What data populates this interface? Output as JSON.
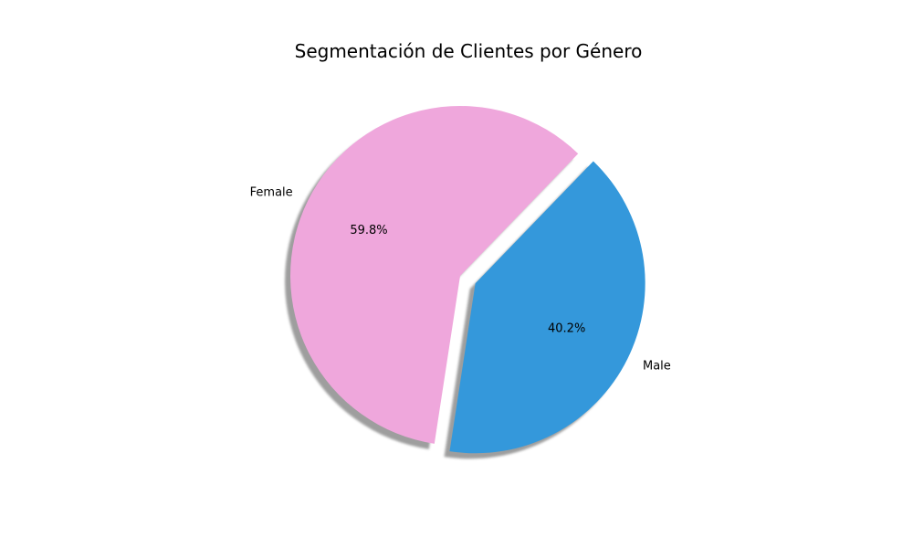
{
  "chart_data": {
    "type": "pie",
    "title": "Segmentación de Clientes por Género",
    "slices": [
      {
        "label": "Female",
        "value": 59.8,
        "pct_text": "59.8%",
        "color": "#EFA7DC",
        "exploded": false
      },
      {
        "label": "Male",
        "value": 40.2,
        "pct_text": "40.2%",
        "color": "#3498DB",
        "exploded": true
      }
    ],
    "shadow": true,
    "legend": "none"
  }
}
